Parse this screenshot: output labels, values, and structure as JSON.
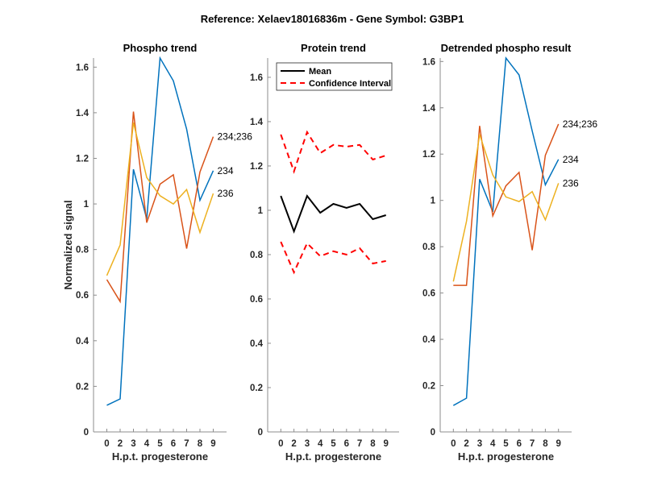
{
  "chart_data": {
    "title": "Reference:  Xelaev18016836m - Gene Symbol:  G3BP1",
    "panels": [
      {
        "type": "line",
        "title": "Phospho trend",
        "xlabel": "H.p.t. progesterone",
        "ylabel": "Normalized signal",
        "categories": [
          "0",
          "2",
          "3",
          "4",
          "5",
          "6",
          "7",
          "8",
          "9"
        ],
        "xlim": [
          0,
          10
        ],
        "ylim": [
          0,
          1.64
        ],
        "yticks": [
          "0",
          "0.2",
          "0.4",
          "0.6",
          "0.8",
          "1",
          "1.2",
          "1.4",
          "1.6"
        ],
        "series": [
          {
            "name": "234",
            "color": "#0072BD",
            "end_label": "234",
            "values": [
              0.117,
              0.145,
              1.152,
              0.934,
              1.64,
              1.54,
              1.328,
              1.016,
              1.146
            ]
          },
          {
            "name": "234;236",
            "color": "#D95319",
            "end_label": "234;236",
            "values": [
              0.668,
              0.572,
              1.405,
              0.918,
              1.087,
              1.128,
              0.804,
              1.14,
              1.295
            ]
          },
          {
            "name": "236",
            "color": "#EDB120",
            "end_label": "236",
            "values": [
              0.686,
              0.82,
              1.357,
              1.116,
              1.036,
              1.0,
              1.063,
              0.875,
              1.046
            ]
          }
        ]
      },
      {
        "type": "line",
        "title": "Protein trend",
        "xlabel": "H.p.t. progesterone",
        "ylabel": "",
        "categories": [
          "0",
          "2",
          "3",
          "4",
          "5",
          "6",
          "7",
          "8",
          "9"
        ],
        "xlim": [
          0,
          10
        ],
        "ylim": [
          0,
          1.687
        ],
        "yticks": [
          "0",
          "0.2",
          "0.4",
          "0.6",
          "0.8",
          "1",
          "1.2",
          "1.4",
          "1.6"
        ],
        "legend": {
          "position": "top-left",
          "entries": [
            "Mean",
            "Confidence Interval"
          ]
        },
        "series": [
          {
            "name": "Mean",
            "color": "#000000",
            "style": "solid",
            "values": [
              1.065,
              0.905,
              1.065,
              0.989,
              1.029,
              1.011,
              1.029,
              0.96,
              0.978
            ]
          },
          {
            "name": "Confidence Interval (upper)",
            "color": "#FF0000",
            "style": "dashed",
            "values": [
              1.342,
              1.175,
              1.353,
              1.258,
              1.295,
              1.287,
              1.295,
              1.229,
              1.247
            ]
          },
          {
            "name": "Confidence Interval (lower)",
            "color": "#FF0000",
            "style": "dashed",
            "values": [
              0.858,
              0.72,
              0.851,
              0.793,
              0.815,
              0.8,
              0.829,
              0.76,
              0.771
            ]
          }
        ]
      },
      {
        "type": "line",
        "title": "Detrended phospho result",
        "xlabel": "H.p.t. progesterone",
        "ylabel": "",
        "categories": [
          "0",
          "2",
          "3",
          "4",
          "5",
          "6",
          "7",
          "8",
          "9"
        ],
        "xlim": [
          0,
          10
        ],
        "ylim": [
          0,
          1.615
        ],
        "yticks": [
          "0",
          "0.2",
          "0.4",
          "0.6",
          "0.8",
          "1",
          "1.2",
          "1.4",
          "1.6"
        ],
        "series": [
          {
            "name": "234",
            "color": "#0072BD",
            "end_label": "234",
            "values": [
              0.114,
              0.146,
              1.092,
              0.951,
              1.615,
              1.542,
              1.3,
              1.067,
              1.177
            ]
          },
          {
            "name": "234;236",
            "color": "#D95319",
            "end_label": "234;236",
            "values": [
              0.633,
              0.633,
              1.322,
              0.933,
              1.063,
              1.121,
              0.785,
              1.195,
              1.33
            ]
          },
          {
            "name": "236",
            "color": "#EDB120",
            "end_label": "236",
            "values": [
              0.65,
              0.91,
              1.285,
              1.11,
              1.015,
              0.995,
              1.038,
              0.916,
              1.074
            ]
          }
        ]
      }
    ]
  }
}
